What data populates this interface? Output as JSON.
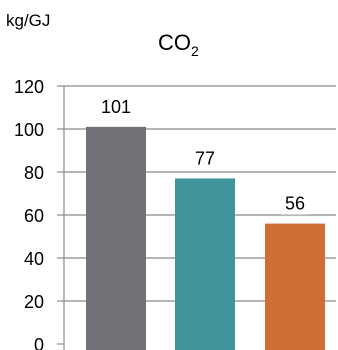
{
  "chart_data": {
    "type": "bar",
    "title_main": "CO",
    "title_subscript": "2",
    "ylabel": "kg/GJ",
    "ylim": [
      0,
      120
    ],
    "yticks": [
      0,
      20,
      40,
      60,
      80,
      100,
      120
    ],
    "categories": [
      "",
      "",
      ""
    ],
    "values": [
      101,
      77,
      56
    ],
    "value_labels": [
      "101",
      "77",
      "56"
    ],
    "bar_colors": [
      "#737278",
      "#3f9599",
      "#d06d35"
    ],
    "grid": true,
    "gridline_color": "#8a8a8a",
    "legend": "none"
  }
}
